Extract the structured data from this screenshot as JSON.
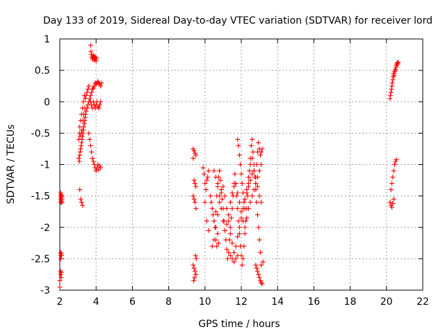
{
  "chart_data": {
    "type": "scatter",
    "title": "Day 133 of 2019, Sidereal Day-to-day VTEC variation (SDTVAR) for receiver lord",
    "xlabel": "GPS time / hours",
    "ylabel": "SDTVAR / TECUs",
    "xlim": [
      2,
      22
    ],
    "ylim": [
      -3,
      1
    ],
    "xticks": [
      2,
      4,
      6,
      8,
      10,
      12,
      14,
      16,
      18,
      20,
      22
    ],
    "xtick_labels": [
      "2",
      "4",
      "6",
      "8",
      "10",
      "12",
      "14",
      "16",
      "18",
      "20",
      "22"
    ],
    "yticks": [
      -3,
      -2.5,
      -2,
      -1.5,
      -1,
      -0.5,
      0,
      0.5,
      1
    ],
    "ytick_labels": [
      "-3",
      "-2.5",
      "-2",
      "-1.5",
      "-1",
      "-0.5",
      "0",
      "0.5",
      "1"
    ],
    "grid": true,
    "marker": "+",
    "color": "#ff0000",
    "series": [
      {
        "name": "SDTVAR",
        "x": [
          2.0,
          2.0,
          2.05,
          2.05,
          2.05,
          2.05,
          2.05,
          2.05,
          2.05,
          2.05,
          2.05,
          2.08,
          2.08,
          2.08,
          2.08,
          2.08,
          2.08,
          2.1,
          2.1,
          2.1,
          2.1,
          2.12,
          2.12,
          2.12,
          3.05,
          3.05,
          3.08,
          3.08,
          3.1,
          3.1,
          3.12,
          3.12,
          3.15,
          3.15,
          3.18,
          3.18,
          3.2,
          3.2,
          3.22,
          3.22,
          3.25,
          3.25,
          3.28,
          3.28,
          3.3,
          3.3,
          3.32,
          3.32,
          3.35,
          3.35,
          3.38,
          3.38,
          3.4,
          3.4,
          3.42,
          3.45,
          3.45,
          3.5,
          3.5,
          3.55,
          3.55,
          3.6,
          3.6,
          3.65,
          3.7,
          3.75,
          3.8,
          3.85,
          3.9,
          3.95,
          4.0,
          4.05,
          4.1,
          4.15,
          4.2,
          4.25,
          4.3,
          3.1,
          3.15,
          3.2,
          3.25,
          3.7,
          3.72,
          3.75,
          3.78,
          3.8,
          3.82,
          3.85,
          3.88,
          3.9,
          3.92,
          3.95,
          3.98,
          4.0,
          4.02,
          3.6,
          3.65,
          3.7,
          3.75,
          3.8,
          3.85,
          3.9,
          3.95,
          4.0,
          4.05,
          4.1,
          4.15,
          4.2,
          4.25,
          3.7,
          3.75,
          3.8,
          3.85,
          3.9,
          3.95,
          4.0,
          4.05,
          4.1,
          4.15,
          4.2,
          4.25,
          9.35,
          9.4,
          9.45,
          9.5,
          9.35,
          9.4,
          9.45,
          9.5,
          9.35,
          9.4,
          9.45,
          9.5,
          9.35,
          9.4,
          9.45,
          9.5,
          9.38,
          9.42,
          9.48,
          9.52,
          9.9,
          9.95,
          10.0,
          10.05,
          10.1,
          10.15,
          10.2,
          10.0,
          10.1,
          10.2,
          10.3,
          10.35,
          10.4,
          10.45,
          10.5,
          10.55,
          10.6,
          10.65,
          10.7,
          10.75,
          10.8,
          10.85,
          10.9,
          10.95,
          11.0,
          11.05,
          11.1,
          11.15,
          11.2,
          11.25,
          11.3,
          11.35,
          11.4,
          11.45,
          11.5,
          11.55,
          11.6,
          11.65,
          11.7,
          11.75,
          11.8,
          11.85,
          11.9,
          11.95,
          12.0,
          12.05,
          12.1,
          12.15,
          12.2,
          12.25,
          12.3,
          12.35,
          12.4,
          12.45,
          12.5,
          12.55,
          12.6,
          12.65,
          12.7,
          12.75,
          12.8,
          12.85,
          12.9,
          12.95,
          13.0,
          13.05,
          13.1,
          10.4,
          10.5,
          10.6,
          10.7,
          10.8,
          10.9,
          11.0,
          11.1,
          11.2,
          11.3,
          11.4,
          11.5,
          11.6,
          11.7,
          11.8,
          11.9,
          12.0,
          12.1,
          12.2,
          12.3,
          12.4,
          12.5,
          12.6,
          12.7,
          12.8,
          12.9,
          13.0,
          13.1,
          10.5,
          10.6,
          10.7,
          10.8,
          10.9,
          11.0,
          11.1,
          11.2,
          11.3,
          11.4,
          11.5,
          11.6,
          11.7,
          11.8,
          11.9,
          12.0,
          12.1,
          12.2,
          12.3,
          12.4,
          12.5,
          12.6,
          12.7,
          12.8,
          12.9,
          13.0,
          13.1,
          11.8,
          11.85,
          11.9,
          11.95,
          12.0,
          12.05,
          12.1,
          12.15,
          12.2,
          12.3,
          12.4,
          12.5,
          12.6,
          12.7,
          12.8,
          12.85,
          12.9,
          12.95,
          13.0,
          13.05,
          13.1,
          13.15,
          12.8,
          12.85,
          12.9,
          12.95,
          13.0,
          13.05,
          13.1,
          13.15,
          13.2,
          10.6,
          10.65,
          10.7,
          10.75,
          11.4,
          11.5,
          11.6,
          11.7,
          11.8,
          20.2,
          20.22,
          20.25,
          20.28,
          20.3,
          20.32,
          20.35,
          20.38,
          20.4,
          20.42,
          20.45,
          20.48,
          20.5,
          20.52,
          20.55,
          20.58,
          20.6,
          20.62,
          20.65,
          20.25,
          20.3,
          20.35,
          20.4,
          20.45,
          20.5,
          20.55,
          20.2,
          20.25,
          20.3,
          20.35,
          20.4
        ],
        "y": [
          -2.95,
          -2.85,
          -1.45,
          -1.5,
          -1.55,
          -1.6,
          -2.4,
          -2.45,
          -2.5,
          -2.7,
          -2.75,
          -1.48,
          -1.52,
          -1.58,
          -2.42,
          -2.72,
          -2.8,
          -1.5,
          -1.55,
          -1.6,
          -2.45,
          -1.5,
          -1.55,
          -1.6,
          -0.9,
          -0.6,
          -0.95,
          -0.5,
          -0.85,
          -0.4,
          -0.8,
          -0.55,
          -0.75,
          -0.3,
          -0.7,
          -0.5,
          -0.65,
          -0.2,
          -0.6,
          -0.45,
          -0.55,
          -0.1,
          -0.5,
          -0.3,
          -0.45,
          0.0,
          -0.4,
          -0.2,
          -0.35,
          0.1,
          -0.3,
          -0.1,
          -0.25,
          0.05,
          -0.2,
          -0.15,
          0.1,
          -0.1,
          0.15,
          -0.05,
          0.2,
          0.0,
          0.25,
          0.05,
          0.1,
          0.15,
          0.2,
          0.22,
          0.25,
          0.3,
          0.28,
          0.3,
          0.32,
          0.3,
          0.28,
          0.25,
          0.3,
          -1.4,
          -1.55,
          -1.6,
          -1.65,
          0.9,
          0.8,
          0.75,
          0.7,
          0.72,
          0.68,
          0.74,
          0.7,
          0.66,
          0.72,
          0.7,
          0.68,
          0.65,
          0.7,
          -0.5,
          -0.6,
          -0.7,
          -0.8,
          -0.9,
          -0.95,
          -1.0,
          -1.05,
          -1.1,
          -1.05,
          -1.0,
          -1.08,
          -1.02,
          -1.05,
          0.0,
          -0.05,
          -0.1,
          0.0,
          -0.05,
          -0.1,
          -0.05,
          0.0,
          -0.08,
          -0.1,
          -0.05,
          0.0,
          -0.75,
          -0.78,
          -0.82,
          -0.85,
          -0.9,
          -1.25,
          -1.3,
          -1.35,
          -1.5,
          -1.55,
          -1.6,
          -1.7,
          -2.6,
          -2.65,
          -2.7,
          -2.75,
          -2.85,
          -2.8,
          -2.45,
          -2.5,
          -1.05,
          -1.15,
          -1.3,
          -1.4,
          -1.25,
          -1.2,
          -1.1,
          -1.6,
          -1.9,
          -2.05,
          -1.5,
          -1.6,
          -1.7,
          -1.8,
          -1.9,
          -2.0,
          -1.75,
          -1.5,
          -1.3,
          -1.2,
          -1.1,
          -1.25,
          -1.4,
          -1.55,
          -1.7,
          -1.9,
          -2.05,
          -2.2,
          -2.35,
          -2.5,
          -2.4,
          -2.2,
          -2.0,
          -1.85,
          -1.7,
          -1.5,
          -1.3,
          -1.15,
          -1.3,
          -1.5,
          -1.7,
          -1.9,
          -2.1,
          -2.3,
          -2.45,
          -2.6,
          -2.5,
          -2.3,
          -2.1,
          -1.9,
          -1.7,
          -1.5,
          -1.3,
          -1.1,
          -0.9,
          -0.7,
          -0.6,
          -0.8,
          -1.0,
          -1.2,
          -1.4,
          -1.6,
          -1.8,
          -2.0,
          -2.2,
          -2.4,
          -2.6,
          -2.3,
          -2.2,
          -2.0,
          -1.8,
          -1.6,
          -1.45,
          -1.35,
          -1.5,
          -1.7,
          -1.9,
          -2.1,
          -2.25,
          -2.4,
          -2.3,
          -2.15,
          -2.0,
          -1.85,
          -1.7,
          -1.55,
          -1.45,
          -1.35,
          -1.25,
          -1.15,
          -1.1,
          -1.2,
          -1.35,
          -1.5,
          -1.6,
          -1.1,
          -1.2,
          -1.35,
          -1.5,
          -1.7,
          -1.9,
          -2.05,
          -1.95,
          -1.8,
          -1.6,
          -1.45,
          -1.35,
          -1.3,
          -1.45,
          -1.6,
          -1.75,
          -1.9,
          -2.0,
          -1.85,
          -1.7,
          -1.6,
          -1.5,
          -1.4,
          -1.3,
          -1.2,
          -1.1,
          -1.0,
          -0.6,
          -0.7,
          -0.85,
          -1.0,
          -1.15,
          -1.3,
          -1.45,
          -1.6,
          -1.7,
          -1.4,
          -1.2,
          -1.0,
          -0.9,
          -1.1,
          -1.3,
          -1.0,
          -0.8,
          -0.65,
          -0.75,
          -0.85,
          -0.8,
          -0.75,
          -2.6,
          -2.65,
          -2.7,
          -2.75,
          -2.8,
          -2.85,
          -2.88,
          -2.9,
          -2.55,
          -2.2,
          -2.3,
          -2.1,
          -2.25,
          -2.45,
          -2.5,
          -2.55,
          -2.5,
          -2.45,
          0.05,
          0.1,
          0.15,
          0.2,
          0.25,
          0.3,
          0.35,
          0.4,
          0.45,
          0.42,
          0.48,
          0.5,
          0.52,
          0.55,
          0.58,
          0.6,
          0.62,
          0.6,
          0.63,
          -1.4,
          -1.3,
          -1.2,
          -1.1,
          -1.0,
          -0.95,
          -0.92,
          -1.6,
          -1.65,
          -1.68,
          -1.62,
          -1.55
        ]
      }
    ]
  }
}
